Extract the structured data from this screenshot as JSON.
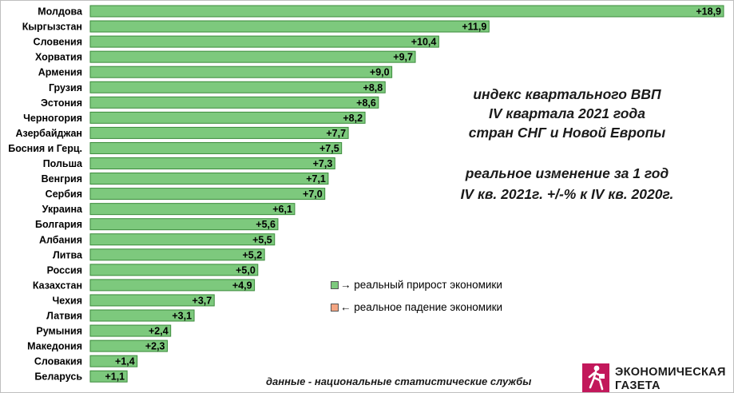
{
  "chart_data": {
    "type": "bar",
    "orientation": "horizontal",
    "categories": [
      "Молдова",
      "Кыргызстан",
      "Словения",
      "Хорватия",
      "Армения",
      "Грузия",
      "Эстония",
      "Черногория",
      "Азербайджан",
      "Босния и Герц.",
      "Польша",
      "Венгрия",
      "Сербия",
      "Украина",
      "Болгария",
      "Албания",
      "Литва",
      "Россия",
      "Казахстан",
      "Чехия",
      "Латвия",
      "Румыния",
      "Македония",
      "Словакия",
      "Беларусь"
    ],
    "values": [
      18.9,
      11.9,
      10.4,
      9.7,
      9.0,
      8.8,
      8.6,
      8.2,
      7.7,
      7.5,
      7.3,
      7.1,
      7.0,
      6.1,
      5.6,
      5.5,
      5.2,
      5.0,
      4.9,
      3.7,
      3.1,
      2.4,
      2.3,
      1.4,
      1.1
    ],
    "value_labels": [
      "+18,9",
      "+11,9",
      "+10,4",
      "+9,7",
      "+9,0",
      "+8,8",
      "+8,6",
      "+8,2",
      "+7,7",
      "+7,5",
      "+7,3",
      "+7,1",
      "+7,0",
      "+6,1",
      "+5,6",
      "+5,5",
      "+5,2",
      "+5,0",
      "+4,9",
      "+3,7",
      "+3,1",
      "+2,4",
      "+2,3",
      "+1,4",
      "+1,1"
    ],
    "xlim": [
      0,
      18.9
    ],
    "grid": false,
    "bar_color": "#7dc97d",
    "bar_border": "#3a8a3a"
  },
  "title": {
    "line1": "индекс квартального ВВП",
    "line2": "IV квартала 2021 года",
    "line3": "стран СНГ и Новой Европы"
  },
  "subtitle": {
    "line1": "реальное изменение за 1 год",
    "line2": "IV кв. 2021г. +/-% к IV кв. 2020г."
  },
  "legend": {
    "growth_label": "→ реальный прирост экономики",
    "growth_color": "#7dc97d",
    "decline_label": "← реальное падение экономики",
    "decline_color": "#f4a582"
  },
  "source": "данные - национальные статистические службы",
  "logo": {
    "line1": "ЭКОНОМИЧЕСКАЯ",
    "line2": "ГАЗЕТА",
    "icon": "walking-figure-icon",
    "color": "#c2185b"
  }
}
